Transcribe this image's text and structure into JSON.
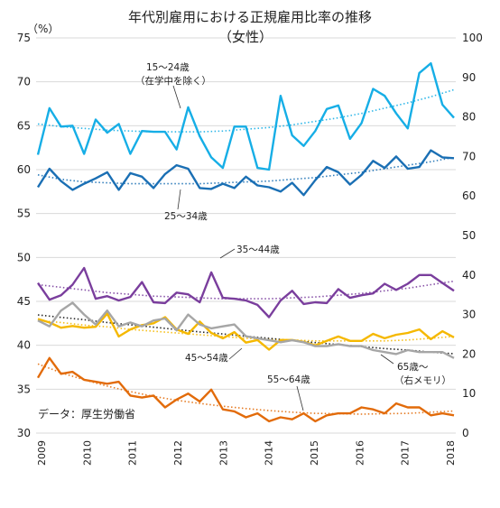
{
  "chart_data": {
    "type": "line",
    "title": "年代別雇用における正規雇用比率の推移",
    "subtitle": "（女性）",
    "left_axis_unit": "（%）",
    "source": "データ：厚生労働省",
    "y_left": {
      "min": 30,
      "max": 75,
      "ticks": [
        30,
        35,
        40,
        45,
        50,
        55,
        60,
        65,
        70,
        75
      ]
    },
    "y_right": {
      "min": 0,
      "max": 100,
      "ticks": [
        0,
        10,
        20,
        30,
        40,
        50,
        60,
        70,
        80,
        90,
        100
      ]
    },
    "x_ticks": [
      "2009",
      "2010",
      "2011",
      "2012",
      "2013",
      "2014",
      "2015",
      "2016",
      "2017",
      "2018"
    ],
    "grid": true,
    "series": [
      {
        "name": "15〜24歳",
        "name2": "（在学中を除く）",
        "axis": "left",
        "color": "#16aee6",
        "values": [
          61.7,
          67.0,
          64.9,
          65.0,
          61.8,
          65.7,
          64.2,
          65.2,
          61.8,
          64.4,
          64.3,
          64.3,
          62.3,
          67.1,
          63.8,
          61.4,
          60.2,
          64.9,
          64.9,
          60.2,
          60.0,
          68.4,
          63.9,
          62.7,
          64.4,
          66.9,
          67.3,
          63.5,
          65.3,
          69.2,
          68.4,
          66.4,
          64.7,
          71.0,
          72.1,
          67.4,
          65.9
        ],
        "trend": [
          65.2,
          64.9,
          64.7,
          64.5,
          64.4,
          64.3,
          64.3,
          64.3,
          64.4,
          64.6,
          64.8,
          65.1,
          65.5,
          65.9,
          66.4,
          67.0,
          67.6,
          68.3,
          69.1
        ]
      },
      {
        "name": "25〜34歳",
        "axis": "left",
        "color": "#1a6fb4",
        "values": [
          58.0,
          60.1,
          58.7,
          57.7,
          58.4,
          59.0,
          59.7,
          57.7,
          59.6,
          59.2,
          57.9,
          59.5,
          60.5,
          60.1,
          57.9,
          57.8,
          58.4,
          57.9,
          59.2,
          58.2,
          58.0,
          57.5,
          58.5,
          57.1,
          58.8,
          60.3,
          59.7,
          58.3,
          59.4,
          61.0,
          60.2,
          61.5,
          60.1,
          60.3,
          62.2,
          61.4,
          61.3
        ],
        "trend": [
          59.4,
          58.9,
          58.6,
          58.5,
          58.4,
          58.4,
          58.4,
          58.4,
          58.5,
          58.6,
          58.7,
          58.9,
          59.1,
          59.4,
          59.7,
          60.1,
          60.5,
          60.9,
          61.4
        ]
      },
      {
        "name": "35〜44歳",
        "axis": "left",
        "color": "#7a3e9d",
        "values": [
          47.1,
          45.2,
          45.7,
          46.9,
          48.8,
          45.3,
          45.6,
          45.1,
          45.5,
          47.2,
          44.9,
          44.8,
          46.0,
          45.8,
          44.9,
          48.3,
          45.4,
          45.3,
          45.1,
          44.6,
          43.2,
          45.1,
          46.2,
          44.7,
          44.9,
          44.8,
          46.4,
          45.4,
          45.7,
          45.9,
          47.0,
          46.3,
          47.0,
          48.0,
          48.0,
          47.1,
          46.2
        ],
        "trend": [
          46.9,
          46.6,
          46.3,
          46.0,
          45.8,
          45.6,
          45.5,
          45.4,
          45.3,
          45.3,
          45.3,
          45.4,
          45.5,
          45.7,
          45.9,
          46.2,
          46.5,
          46.9,
          47.3
        ]
      },
      {
        "name": "45〜54歳",
        "axis": "left",
        "color": "#f5b800",
        "values": [
          43.0,
          42.6,
          42.0,
          42.2,
          42.0,
          42.1,
          43.6,
          41.0,
          41.8,
          42.3,
          42.5,
          43.2,
          41.8,
          41.3,
          42.7,
          41.4,
          40.8,
          41.5,
          40.3,
          40.6,
          39.5,
          40.6,
          40.6,
          40.4,
          40.0,
          40.5,
          41.0,
          40.5,
          40.5,
          41.3,
          40.8,
          41.2,
          41.4,
          41.8,
          40.7,
          41.6,
          40.9
        ],
        "trend": [
          42.8,
          42.6,
          42.3,
          42.1,
          41.8,
          41.6,
          41.4,
          41.2,
          41.0,
          40.8,
          40.7,
          40.6,
          40.5,
          40.5,
          40.5,
          40.5,
          40.6,
          40.8,
          41.0
        ]
      },
      {
        "name": "65歳〜",
        "name2": "（右メモリ）",
        "axis": "right",
        "color": "#a6a6a6",
        "values": [
          28.5,
          27.0,
          31.0,
          33.0,
          30.0,
          27.5,
          31.0,
          27.0,
          28.0,
          27.0,
          28.5,
          29.0,
          26.0,
          30.0,
          27.5,
          26.5,
          27.0,
          27.5,
          24.5,
          24.0,
          23.5,
          23.0,
          23.5,
          23.0,
          22.0,
          22.0,
          22.5,
          22.0,
          22.0,
          21.0,
          20.5,
          20.0,
          21.0,
          20.5,
          20.5,
          20.5,
          19.0
        ],
        "trend": [
          29.9,
          29.3,
          28.7,
          28.0,
          27.4,
          26.8,
          26.2,
          25.6,
          25.1,
          24.5,
          24.0,
          23.4,
          22.9,
          22.4,
          21.9,
          21.4,
          21.0,
          20.5,
          20.1
        ]
      },
      {
        "name": "55〜64歳",
        "axis": "right",
        "color": "#e26b0a",
        "values": [
          14.0,
          19.0,
          15.0,
          15.5,
          13.5,
          13.0,
          12.5,
          13.0,
          9.5,
          9.0,
          9.5,
          6.5,
          8.5,
          10.0,
          8.0,
          11.0,
          6.0,
          5.5,
          4.0,
          5.0,
          3.0,
          4.0,
          3.5,
          5.0,
          3.0,
          4.5,
          5.0,
          5.0,
          6.5,
          6.0,
          5.0,
          7.5,
          6.5,
          6.5,
          4.5,
          5.0,
          4.5
        ],
        "trend": [
          17.5,
          15.3,
          13.5,
          11.9,
          10.5,
          9.3,
          8.3,
          7.5,
          6.8,
          6.2,
          5.7,
          5.3,
          5.0,
          4.9,
          4.8,
          4.9,
          5.0,
          5.3,
          5.6
        ]
      }
    ]
  }
}
